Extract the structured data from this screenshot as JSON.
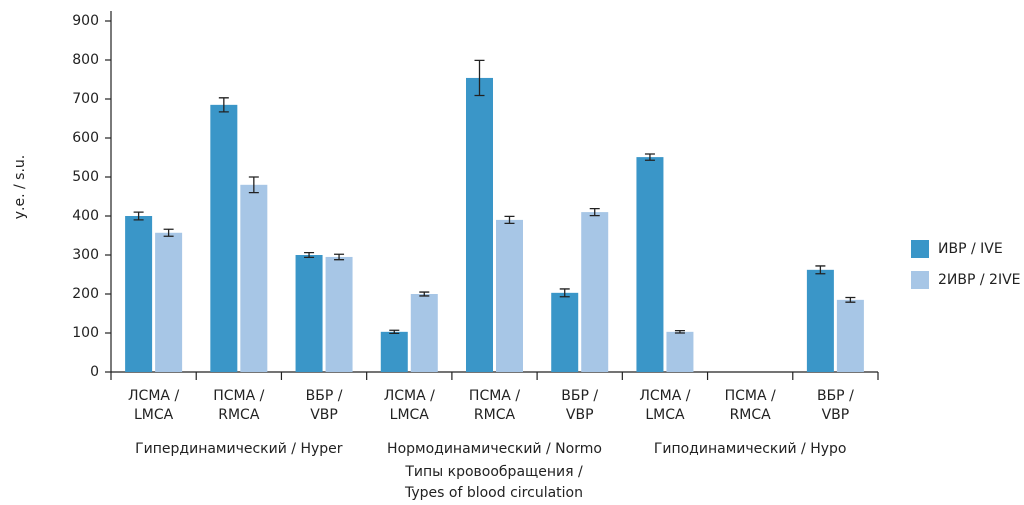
{
  "chart_data": {
    "type": "bar",
    "y_label": "у.е. / s.u.",
    "x_label": [
      "Типы кровообращения /",
      "Types of blood circulation"
    ],
    "categories": [
      [
        "ЛСМА /",
        "LMCA"
      ],
      [
        "ПСМА /",
        "RMCA"
      ],
      [
        "ВБР /",
        "VBP"
      ],
      [
        "ЛСМА /",
        "LMCA"
      ],
      [
        "ПСМА /",
        "RMCA"
      ],
      [
        "ВБР /",
        "VBP"
      ],
      [
        "ЛСМА /",
        "LMCA"
      ],
      [
        "ПСМА /",
        "RMCA"
      ],
      [
        "ВБР /",
        "VBP"
      ]
    ],
    "groups": [
      "Гипердинамический / Hyper",
      "Нормодинамический / Normo",
      "Гиподинамический / Hypo"
    ],
    "series": [
      {
        "name": "ИВР / IVE",
        "color": "#3a96c8",
        "values": [
          400,
          685,
          300,
          103,
          754,
          203,
          551,
          null,
          262
        ],
        "errors": [
          10,
          18,
          6,
          4,
          45,
          10,
          8,
          null,
          10
        ]
      },
      {
        "name": "2ИВР / 2IVE",
        "color": "#a7c6e6",
        "values": [
          357,
          480,
          295,
          200,
          390,
          410,
          103,
          null,
          185
        ],
        "errors": [
          9,
          20,
          7,
          5,
          9,
          9,
          3,
          null,
          6
        ]
      }
    ],
    "ylim": [
      0,
      900
    ],
    "yticks": [
      0,
      100,
      200,
      300,
      400,
      500,
      600,
      700,
      800,
      900
    ],
    "legend": "right"
  }
}
